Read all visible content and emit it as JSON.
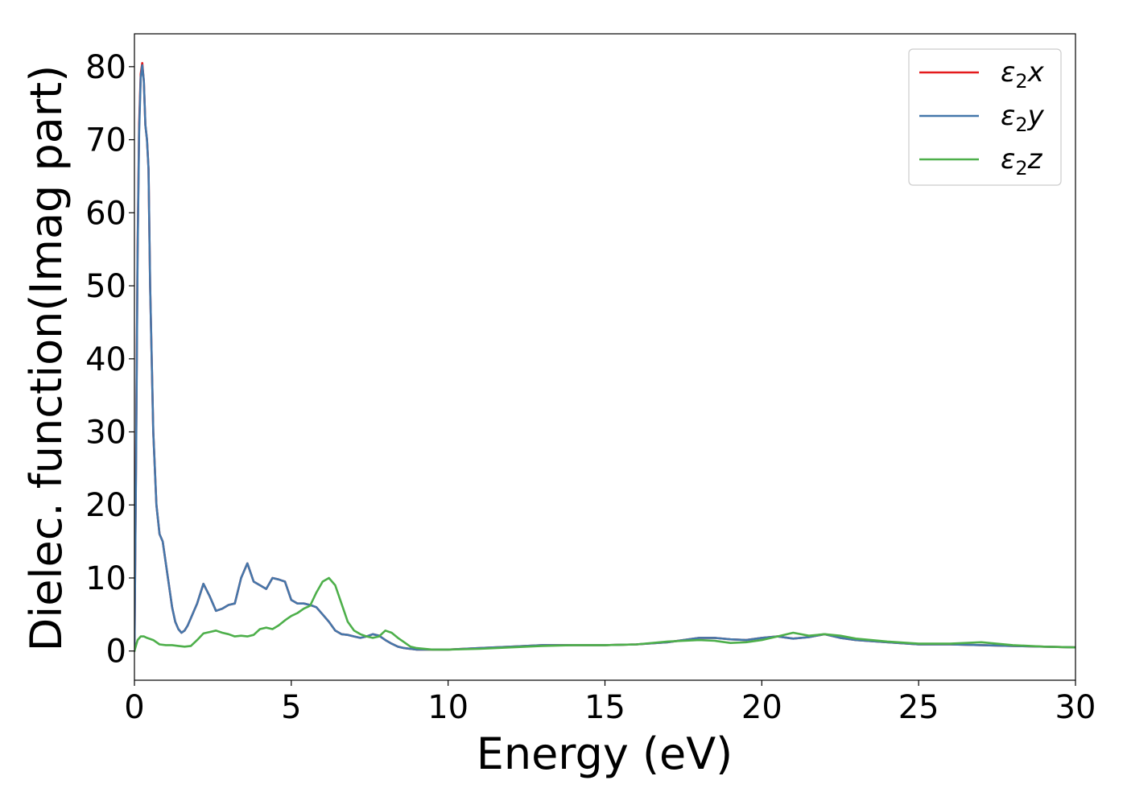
{
  "chart_data": {
    "type": "line",
    "title": "",
    "xlabel": "Energy (eV)",
    "ylabel": "Dielec. function(Imag part)",
    "xlim": [
      0,
      30
    ],
    "ylim": [
      -4,
      84.5
    ],
    "xticks": [
      0,
      5,
      10,
      15,
      20,
      25,
      30
    ],
    "yticks": [
      0,
      10,
      20,
      30,
      40,
      50,
      60,
      70,
      80
    ],
    "grid": false,
    "legend_position": "top-right",
    "series": [
      {
        "name": "ε₂x",
        "legend_base": "ε",
        "legend_sub": "2",
        "legend_suffix": "x",
        "color": "#e41a1c",
        "x": [
          0,
          0.05,
          0.1,
          0.15,
          0.2,
          0.25,
          0.3,
          0.35,
          0.4,
          0.45,
          0.5,
          0.6,
          0.7,
          0.8,
          0.9,
          1.0,
          1.1,
          1.2,
          1.3,
          1.4,
          1.5,
          1.6,
          1.7,
          1.8,
          1.9,
          2.0,
          2.2,
          2.4,
          2.6,
          2.8,
          3.0,
          3.2,
          3.4,
          3.6,
          3.8,
          4.0,
          4.2,
          4.4,
          4.6,
          4.8,
          5.0,
          5.2,
          5.4,
          5.6,
          5.8,
          6.0,
          6.2,
          6.4,
          6.6,
          6.8,
          7.0,
          7.2,
          7.4,
          7.6,
          7.8,
          8.0,
          8.2,
          8.4,
          8.6,
          8.8,
          9.0,
          9.5,
          10,
          11,
          12,
          13,
          14,
          15,
          16,
          17,
          18,
          18.5,
          19,
          19.5,
          20,
          20.5,
          21,
          21.5,
          22,
          22.5,
          23,
          24,
          25,
          26,
          27,
          28,
          29,
          30
        ],
        "y": [
          0,
          25,
          55,
          72,
          79,
          80.5,
          78,
          72,
          70,
          66,
          50,
          30,
          20,
          16,
          15,
          12,
          9,
          6,
          4,
          3,
          2.5,
          2.8,
          3.5,
          4.5,
          5.5,
          6.5,
          9.2,
          7.5,
          5.5,
          5.8,
          6.3,
          6.5,
          10,
          12,
          9.5,
          9,
          8.5,
          10,
          9.8,
          9.5,
          7,
          6.5,
          6.5,
          6.3,
          6,
          5,
          4,
          2.8,
          2.3,
          2.2,
          2,
          1.8,
          2,
          2.3,
          2.1,
          1.5,
          1,
          0.6,
          0.4,
          0.3,
          0.2,
          0.2,
          0.2,
          0.4,
          0.6,
          0.8,
          0.8,
          0.8,
          0.9,
          1.2,
          1.8,
          1.8,
          1.6,
          1.5,
          1.8,
          2,
          1.7,
          1.9,
          2.3,
          1.8,
          1.5,
          1.2,
          0.9,
          0.9,
          0.8,
          0.7,
          0.6,
          0.5
        ]
      },
      {
        "name": "ε₂y",
        "legend_base": "ε",
        "legend_sub": "2",
        "legend_suffix": "y",
        "color": "#4477aa",
        "x": [
          0,
          0.05,
          0.1,
          0.15,
          0.2,
          0.25,
          0.3,
          0.35,
          0.4,
          0.45,
          0.5,
          0.6,
          0.7,
          0.8,
          0.9,
          1.0,
          1.1,
          1.2,
          1.3,
          1.4,
          1.5,
          1.6,
          1.7,
          1.8,
          1.9,
          2.0,
          2.2,
          2.4,
          2.6,
          2.8,
          3.0,
          3.2,
          3.4,
          3.6,
          3.8,
          4.0,
          4.2,
          4.4,
          4.6,
          4.8,
          5.0,
          5.2,
          5.4,
          5.6,
          5.8,
          6.0,
          6.2,
          6.4,
          6.6,
          6.8,
          7.0,
          7.2,
          7.4,
          7.6,
          7.8,
          8.0,
          8.2,
          8.4,
          8.6,
          8.8,
          9.0,
          9.5,
          10,
          11,
          12,
          13,
          14,
          15,
          16,
          17,
          18,
          18.5,
          19,
          19.5,
          20,
          20.5,
          21,
          21.5,
          22,
          22.5,
          23,
          24,
          25,
          26,
          27,
          28,
          29,
          30
        ],
        "y": [
          0,
          24,
          54,
          71,
          78.5,
          80.2,
          78,
          72,
          70,
          66,
          50,
          30,
          20,
          16,
          15,
          12,
          9,
          6,
          4,
          3,
          2.5,
          2.8,
          3.5,
          4.5,
          5.5,
          6.5,
          9.2,
          7.5,
          5.5,
          5.8,
          6.3,
          6.5,
          10,
          12,
          9.5,
          9,
          8.5,
          10,
          9.8,
          9.5,
          7,
          6.5,
          6.5,
          6.3,
          6,
          5,
          4,
          2.8,
          2.3,
          2.2,
          2,
          1.8,
          2,
          2.3,
          2.1,
          1.5,
          1,
          0.6,
          0.4,
          0.3,
          0.2,
          0.2,
          0.2,
          0.4,
          0.6,
          0.8,
          0.8,
          0.8,
          0.9,
          1.2,
          1.8,
          1.8,
          1.6,
          1.5,
          1.8,
          2,
          1.7,
          1.9,
          2.3,
          1.8,
          1.5,
          1.2,
          0.9,
          0.9,
          0.8,
          0.7,
          0.6,
          0.5
        ]
      },
      {
        "name": "ε₂z",
        "legend_base": "ε",
        "legend_sub": "2",
        "legend_suffix": "z",
        "color": "#4daf4a",
        "x": [
          0,
          0.1,
          0.2,
          0.3,
          0.4,
          0.6,
          0.8,
          1.0,
          1.2,
          1.4,
          1.6,
          1.8,
          2.0,
          2.2,
          2.4,
          2.6,
          2.8,
          3.0,
          3.2,
          3.4,
          3.6,
          3.8,
          4.0,
          4.2,
          4.4,
          4.6,
          4.8,
          5.0,
          5.2,
          5.4,
          5.6,
          5.8,
          6.0,
          6.2,
          6.4,
          6.6,
          6.8,
          7.0,
          7.2,
          7.4,
          7.6,
          7.8,
          8.0,
          8.2,
          8.4,
          8.6,
          8.8,
          9.0,
          9.5,
          10,
          11,
          12,
          13,
          14,
          15,
          16,
          17,
          18,
          18.5,
          19,
          19.5,
          20,
          20.5,
          21,
          21.5,
          22,
          22.5,
          23,
          24,
          25,
          26,
          27,
          28,
          29,
          30
        ],
        "y": [
          0,
          1.5,
          2,
          2,
          1.8,
          1.5,
          0.9,
          0.8,
          0.8,
          0.7,
          0.6,
          0.7,
          1.5,
          2.4,
          2.6,
          2.8,
          2.5,
          2.3,
          2,
          2.1,
          2,
          2.2,
          3,
          3.2,
          3,
          3.5,
          4.2,
          4.8,
          5.2,
          5.8,
          6.2,
          8,
          9.5,
          10,
          9,
          6.5,
          4,
          2.8,
          2.3,
          2,
          1.8,
          2,
          2.8,
          2.5,
          1.8,
          1.2,
          0.6,
          0.4,
          0.2,
          0.2,
          0.3,
          0.5,
          0.7,
          0.8,
          0.8,
          0.9,
          1.3,
          1.5,
          1.4,
          1.1,
          1.2,
          1.5,
          2,
          2.5,
          2.1,
          2.3,
          2.1,
          1.7,
          1.3,
          1,
          1,
          1.2,
          0.8,
          0.6,
          0.5
        ]
      }
    ]
  }
}
